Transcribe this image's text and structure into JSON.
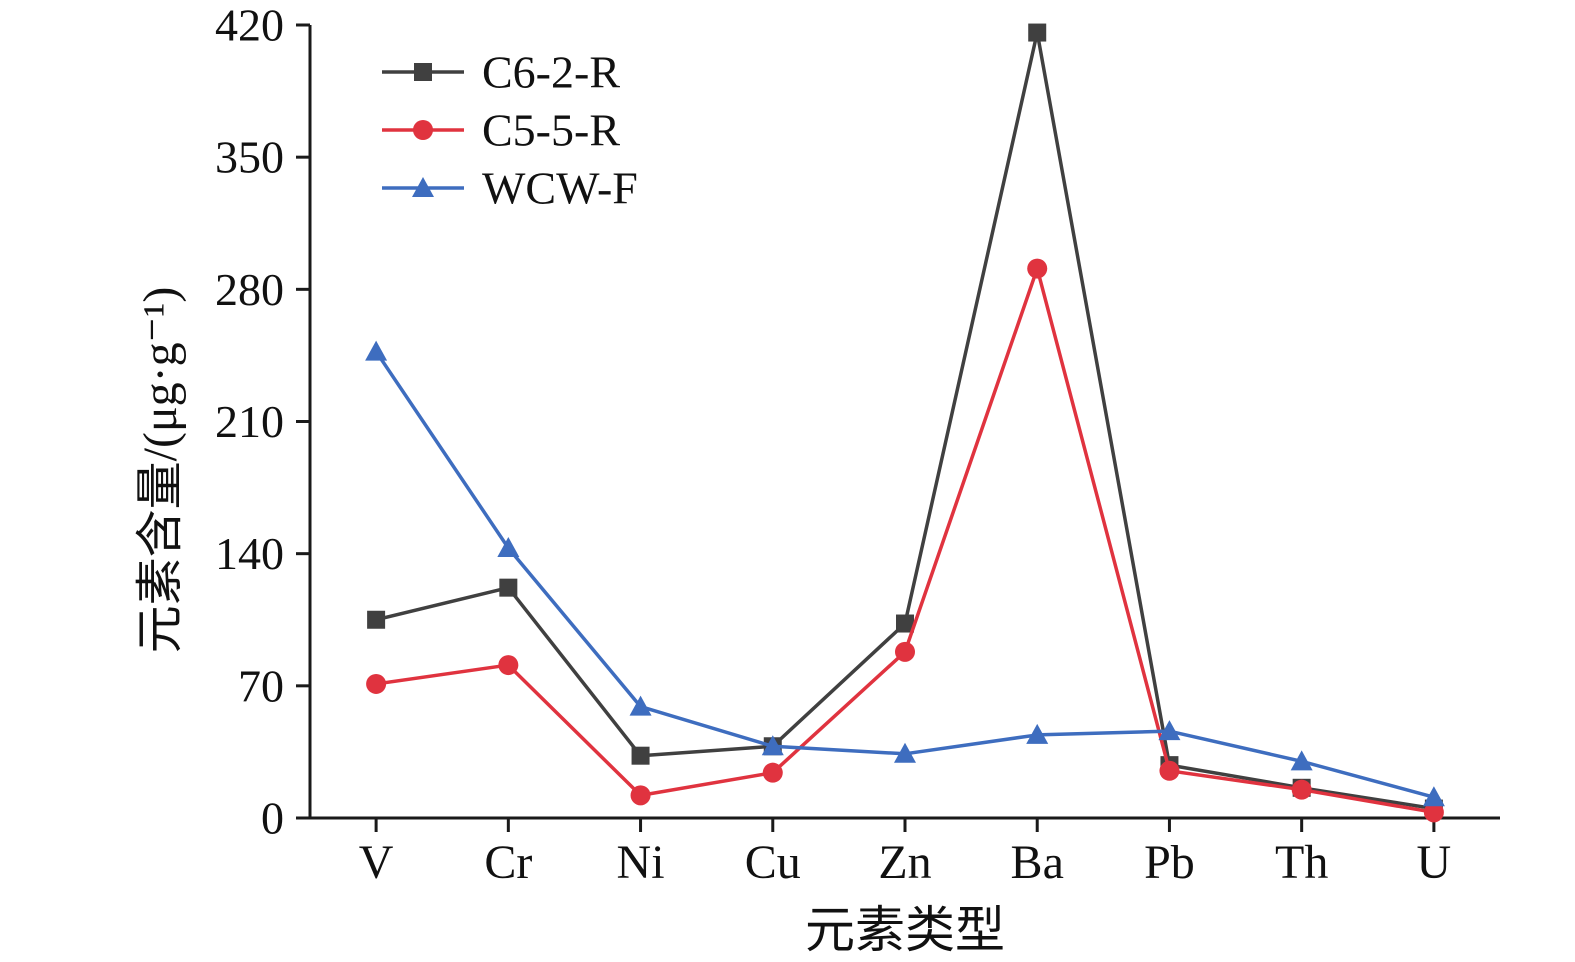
{
  "chart_data": {
    "type": "line",
    "title": "",
    "xlabel": "元素类型",
    "ylabel": "元素含量/(μg·g⁻¹)",
    "ylim": [
      0,
      420
    ],
    "yticks": [
      0,
      70,
      140,
      210,
      280,
      350,
      420
    ],
    "grid": false,
    "legend_position": "top-left",
    "categories": [
      "V",
      "Cr",
      "Ni",
      "Cu",
      "Zn",
      "Ba",
      "Pb",
      "Th",
      "U"
    ],
    "series": [
      {
        "name": "C6-2-R",
        "color": "#404040",
        "marker": "square",
        "values": [
          105,
          122,
          33,
          38,
          103,
          416,
          28,
          16,
          5
        ]
      },
      {
        "name": "C5-5-R",
        "color": "#e0333f",
        "marker": "circle",
        "values": [
          71,
          81,
          12,
          24,
          88,
          291,
          25,
          15,
          3
        ]
      },
      {
        "name": "WCW-F",
        "color": "#3e6dbf",
        "marker": "triangle",
        "values": [
          247,
          143,
          59,
          38,
          34,
          44,
          46,
          30,
          11
        ]
      }
    ]
  }
}
